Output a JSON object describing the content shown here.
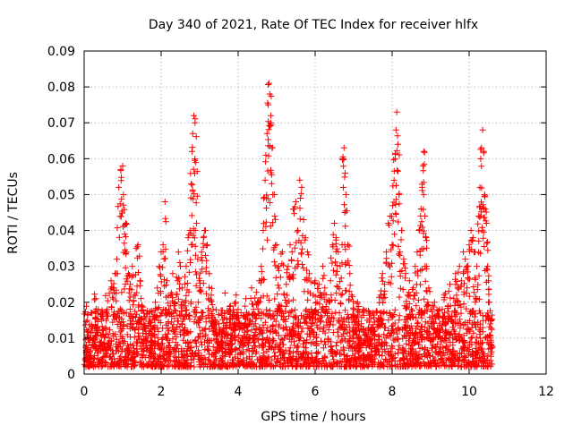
{
  "chart_data": {
    "type": "scatter",
    "title": "Day 340 of 2021, Rate Of TEC Index for receiver hlfx",
    "xlabel": "GPS time / hours",
    "ylabel": "ROTI / TECUs",
    "xlim": [
      0,
      12
    ],
    "ylim": [
      0,
      0.09
    ],
    "x_ticks": [
      0,
      2,
      4,
      6,
      8,
      10,
      12
    ],
    "x_tick_labels": [
      "0",
      "2",
      "4",
      "6",
      "8",
      "10",
      "12"
    ],
    "y_ticks": [
      0,
      0.01,
      0.02,
      0.03,
      0.04,
      0.05,
      0.06,
      0.07,
      0.08,
      0.09
    ],
    "y_tick_labels": [
      "0",
      "0.01",
      "0.02",
      "0.03",
      "0.04",
      "0.05",
      "0.06",
      "0.07",
      "0.08",
      "0.09"
    ],
    "grid": true,
    "marker": "plus",
    "series_color": "#ff0000",
    "series": [
      {
        "name": "ROTI",
        "x_range": [
          0,
          10.6
        ],
        "points": [
          [
            0.05,
            0.008
          ],
          [
            0.1,
            0.012
          ],
          [
            0.15,
            0.006
          ],
          [
            0.2,
            0.017
          ],
          [
            0.25,
            0.01
          ],
          [
            0.3,
            0.021
          ],
          [
            0.35,
            0.013
          ],
          [
            0.4,
            0.009
          ],
          [
            0.45,
            0.015
          ],
          [
            0.5,
            0.011
          ],
          [
            0.55,
            0.007
          ],
          [
            0.6,
            0.018
          ],
          [
            0.65,
            0.01
          ],
          [
            0.7,
            0.026
          ],
          [
            0.75,
            0.024
          ],
          [
            0.8,
            0.028
          ],
          [
            0.85,
            0.032
          ],
          [
            0.9,
            0.052
          ],
          [
            0.95,
            0.057
          ],
          [
            1.0,
            0.058
          ],
          [
            1.02,
            0.05
          ],
          [
            1.05,
            0.039
          ],
          [
            1.08,
            0.042
          ],
          [
            1.1,
            0.034
          ],
          [
            1.15,
            0.028
          ],
          [
            1.2,
            0.025
          ],
          [
            1.25,
            0.03
          ],
          [
            1.3,
            0.022
          ],
          [
            1.35,
            0.035
          ],
          [
            1.4,
            0.036
          ],
          [
            1.45,
            0.026
          ],
          [
            1.5,
            0.019
          ],
          [
            1.55,
            0.014
          ],
          [
            1.6,
            0.012
          ],
          [
            1.65,
            0.01
          ],
          [
            1.7,
            0.016
          ],
          [
            1.75,
            0.009
          ],
          [
            1.8,
            0.013
          ],
          [
            1.85,
            0.02
          ],
          [
            1.9,
            0.024
          ],
          [
            1.95,
            0.03
          ],
          [
            2.0,
            0.034
          ],
          [
            2.05,
            0.036
          ],
          [
            2.1,
            0.048
          ],
          [
            2.15,
            0.026
          ],
          [
            2.2,
            0.018
          ],
          [
            2.25,
            0.022
          ],
          [
            2.3,
            0.028
          ],
          [
            2.35,
            0.02
          ],
          [
            2.4,
            0.027
          ],
          [
            2.45,
            0.034
          ],
          [
            2.5,
            0.03
          ],
          [
            2.55,
            0.024
          ],
          [
            2.6,
            0.02
          ],
          [
            2.65,
            0.03
          ],
          [
            2.7,
            0.038
          ],
          [
            2.75,
            0.04
          ],
          [
            2.78,
            0.053
          ],
          [
            2.8,
            0.062
          ],
          [
            2.82,
            0.067
          ],
          [
            2.85,
            0.072
          ],
          [
            2.88,
            0.07
          ],
          [
            2.9,
            0.059
          ],
          [
            2.92,
            0.042
          ],
          [
            2.95,
            0.032
          ],
          [
            3.0,
            0.026
          ],
          [
            3.05,
            0.034
          ],
          [
            3.1,
            0.038
          ],
          [
            3.15,
            0.04
          ],
          [
            3.2,
            0.036
          ],
          [
            3.25,
            0.028
          ],
          [
            3.3,
            0.022
          ],
          [
            3.35,
            0.018
          ],
          [
            3.4,
            0.015
          ],
          [
            3.45,
            0.011
          ],
          [
            3.5,
            0.014
          ],
          [
            3.55,
            0.009
          ],
          [
            3.6,
            0.012
          ],
          [
            3.65,
            0.017
          ],
          [
            3.7,
            0.013
          ],
          [
            3.75,
            0.008
          ],
          [
            3.8,
            0.019
          ],
          [
            3.85,
            0.011
          ],
          [
            3.9,
            0.014
          ],
          [
            3.95,
            0.022
          ],
          [
            4.0,
            0.018
          ],
          [
            4.05,
            0.013
          ],
          [
            4.1,
            0.01
          ],
          [
            4.15,
            0.016
          ],
          [
            4.2,
            0.021
          ],
          [
            4.25,
            0.012
          ],
          [
            4.3,
            0.015
          ],
          [
            4.35,
            0.024
          ],
          [
            4.4,
            0.018
          ],
          [
            4.45,
            0.014
          ],
          [
            4.5,
            0.02
          ],
          [
            4.55,
            0.026
          ],
          [
            4.6,
            0.03
          ],
          [
            4.65,
            0.04
          ],
          [
            4.7,
            0.054
          ],
          [
            4.72,
            0.061
          ],
          [
            4.75,
            0.067
          ],
          [
            4.78,
            0.075
          ],
          [
            4.8,
            0.081
          ],
          [
            4.82,
            0.078
          ],
          [
            4.85,
            0.072
          ],
          [
            4.88,
            0.063
          ],
          [
            4.9,
            0.05
          ],
          [
            4.95,
            0.044
          ],
          [
            5.0,
            0.036
          ],
          [
            5.05,
            0.03
          ],
          [
            5.1,
            0.027
          ],
          [
            5.15,
            0.034
          ],
          [
            5.2,
            0.022
          ],
          [
            5.25,
            0.025
          ],
          [
            5.3,
            0.03
          ],
          [
            5.35,
            0.036
          ],
          [
            5.4,
            0.034
          ],
          [
            5.45,
            0.046
          ],
          [
            5.5,
            0.048
          ],
          [
            5.55,
            0.04
          ],
          [
            5.6,
            0.054
          ],
          [
            5.65,
            0.052
          ],
          [
            5.7,
            0.043
          ],
          [
            5.75,
            0.038
          ],
          [
            5.8,
            0.034
          ],
          [
            5.85,
            0.028
          ],
          [
            5.9,
            0.018
          ],
          [
            5.95,
            0.022
          ],
          [
            6.0,
            0.026
          ],
          [
            6.05,
            0.02
          ],
          [
            6.1,
            0.025
          ],
          [
            6.15,
            0.022
          ],
          [
            6.2,
            0.03
          ],
          [
            6.25,
            0.024
          ],
          [
            6.3,
            0.02
          ],
          [
            6.35,
            0.018
          ],
          [
            6.4,
            0.026
          ],
          [
            6.45,
            0.036
          ],
          [
            6.5,
            0.042
          ],
          [
            6.55,
            0.038
          ],
          [
            6.6,
            0.034
          ],
          [
            6.65,
            0.03
          ],
          [
            6.7,
            0.036
          ],
          [
            6.72,
            0.06
          ],
          [
            6.75,
            0.063
          ],
          [
            6.78,
            0.056
          ],
          [
            6.8,
            0.05
          ],
          [
            6.85,
            0.036
          ],
          [
            6.9,
            0.028
          ],
          [
            6.95,
            0.022
          ],
          [
            7.0,
            0.018
          ],
          [
            7.05,
            0.016
          ],
          [
            7.1,
            0.02
          ],
          [
            7.15,
            0.012
          ],
          [
            7.2,
            0.014
          ],
          [
            7.25,
            0.018
          ],
          [
            7.3,
            0.011
          ],
          [
            7.35,
            0.015
          ],
          [
            7.4,
            0.009
          ],
          [
            7.45,
            0.013
          ],
          [
            7.5,
            0.017
          ],
          [
            7.55,
            0.012
          ],
          [
            7.6,
            0.008
          ],
          [
            7.65,
            0.015
          ],
          [
            7.7,
            0.022
          ],
          [
            7.75,
            0.028
          ],
          [
            7.8,
            0.025
          ],
          [
            7.85,
            0.034
          ],
          [
            7.9,
            0.042
          ],
          [
            7.95,
            0.044
          ],
          [
            8.0,
            0.036
          ],
          [
            8.05,
            0.054
          ],
          [
            8.08,
            0.06
          ],
          [
            8.1,
            0.068
          ],
          [
            8.12,
            0.073
          ],
          [
            8.15,
            0.064
          ],
          [
            8.18,
            0.05
          ],
          [
            8.2,
            0.034
          ],
          [
            8.25,
            0.04
          ],
          [
            8.3,
            0.032
          ],
          [
            8.35,
            0.028
          ],
          [
            8.4,
            0.022
          ],
          [
            8.45,
            0.026
          ],
          [
            8.5,
            0.018
          ],
          [
            8.55,
            0.024
          ],
          [
            8.6,
            0.03
          ],
          [
            8.65,
            0.034
          ],
          [
            8.7,
            0.04
          ],
          [
            8.75,
            0.046
          ],
          [
            8.78,
            0.052
          ],
          [
            8.8,
            0.058
          ],
          [
            8.82,
            0.062
          ],
          [
            8.85,
            0.044
          ],
          [
            8.88,
            0.038
          ],
          [
            8.9,
            0.03
          ],
          [
            8.95,
            0.024
          ],
          [
            9.0,
            0.018
          ],
          [
            9.05,
            0.014
          ],
          [
            9.1,
            0.02
          ],
          [
            9.15,
            0.012
          ],
          [
            9.2,
            0.016
          ],
          [
            9.25,
            0.01
          ],
          [
            9.3,
            0.018
          ],
          [
            9.35,
            0.022
          ],
          [
            9.4,
            0.014
          ],
          [
            9.45,
            0.019
          ],
          [
            9.5,
            0.025
          ],
          [
            9.55,
            0.016
          ],
          [
            9.6,
            0.021
          ],
          [
            9.65,
            0.028
          ],
          [
            9.7,
            0.024
          ],
          [
            9.75,
            0.03
          ],
          [
            9.8,
            0.026
          ],
          [
            9.85,
            0.034
          ],
          [
            9.9,
            0.032
          ],
          [
            9.95,
            0.03
          ],
          [
            10.0,
            0.036
          ],
          [
            10.05,
            0.04
          ],
          [
            10.1,
            0.038
          ],
          [
            10.15,
            0.034
          ],
          [
            10.2,
            0.03
          ],
          [
            10.25,
            0.044
          ],
          [
            10.28,
            0.052
          ],
          [
            10.3,
            0.06
          ],
          [
            10.32,
            0.063
          ],
          [
            10.35,
            0.068
          ],
          [
            10.38,
            0.062
          ],
          [
            10.4,
            0.05
          ],
          [
            10.42,
            0.046
          ],
          [
            10.45,
            0.042
          ],
          [
            10.48,
            0.03
          ],
          [
            10.5,
            0.026
          ],
          [
            10.52,
            0.02
          ],
          [
            10.55,
            0.014
          ],
          [
            10.57,
            0.008
          ]
        ],
        "dense_band": {
          "description": "dense cloud of background points",
          "x_from": 0,
          "x_to": 10.6,
          "y_low": 0.002,
          "y_high": 0.018,
          "count": 2400
        }
      }
    ]
  }
}
